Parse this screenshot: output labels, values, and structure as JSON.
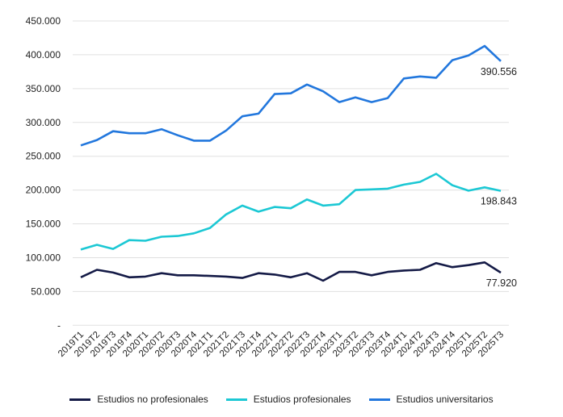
{
  "chart_data": {
    "type": "line",
    "title": "",
    "xlabel": "",
    "ylabel": "",
    "ylim": [
      0,
      450000
    ],
    "yticks": [
      0,
      50000,
      100000,
      150000,
      200000,
      250000,
      300000,
      350000,
      400000,
      450000
    ],
    "ytick_labels": [
      "-",
      "50.000",
      "100.000",
      "150.000",
      "200.000",
      "250.000",
      "300.000",
      "350.000",
      "400.000",
      "450.000"
    ],
    "grid": true,
    "legend_position": "bottom",
    "categories": [
      "2019T1",
      "2019T2",
      "2019T3",
      "2019T4",
      "2020T1",
      "2020T2",
      "2020T3",
      "2020T4",
      "2021T1",
      "2021T2",
      "2021T3",
      "2021T4",
      "2022T1",
      "2022T2",
      "2022T3",
      "2022T4",
      "2023T1",
      "2023T2",
      "2023T3",
      "2023T4",
      "2024T1",
      "2024T2",
      "2024T3",
      "2024T4",
      "2025T1",
      "2025T2",
      "2025T3"
    ],
    "series": [
      {
        "name": "Estudios no profesionales",
        "color": "#141a46",
        "values": [
          71000,
          82000,
          78000,
          71000,
          72000,
          77000,
          74000,
          74000,
          73000,
          72000,
          70000,
          77000,
          75000,
          71000,
          77000,
          66000,
          79000,
          79000,
          74000,
          79000,
          81000,
          82000,
          92000,
          86000,
          89000,
          93000,
          77920
        ],
        "end_label": "77.920"
      },
      {
        "name": "Estudios profesionales",
        "color": "#1cc8d4",
        "values": [
          112000,
          119000,
          113000,
          126000,
          125000,
          131000,
          132000,
          136000,
          144000,
          164000,
          177000,
          168000,
          175000,
          173000,
          186000,
          177000,
          179000,
          200000,
          201000,
          202000,
          208000,
          212000,
          224000,
          207000,
          199000,
          204000,
          198843
        ],
        "end_label": "198.843"
      },
      {
        "name": "Estudios universitarios",
        "color": "#2277dd",
        "values": [
          266000,
          274000,
          287000,
          284000,
          284000,
          290000,
          281000,
          273000,
          273000,
          288000,
          309000,
          313000,
          342000,
          343000,
          356000,
          346000,
          330000,
          337000,
          330000,
          336000,
          365000,
          368000,
          366000,
          392000,
          399000,
          413000,
          390556
        ],
        "end_label": "390.556"
      }
    ]
  }
}
